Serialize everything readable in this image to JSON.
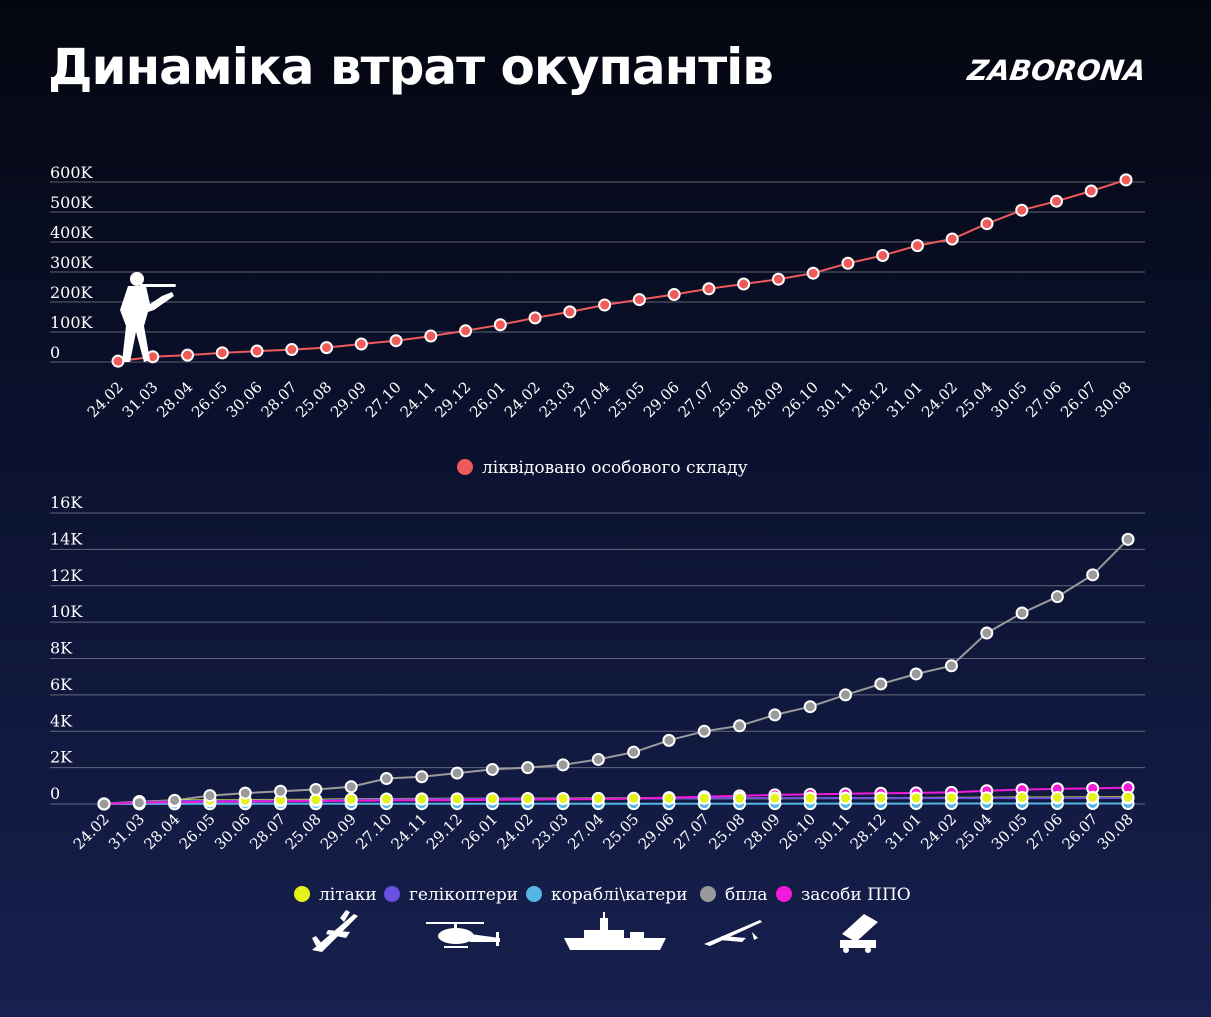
{
  "header": {
    "title": "Динаміка втрат окупантів",
    "brand": "ZABORONA"
  },
  "colors": {
    "personnel": "#f05a5a",
    "aircraft": "#e4f21a",
    "helicopters": "#6a4fe0",
    "ships": "#55b6e6",
    "drones": "#9a9a9a",
    "air_defense": "#f21ad8"
  },
  "chart_data": [
    {
      "type": "line",
      "categories": [
        "24.02",
        "31.03",
        "28.04",
        "26.05",
        "30.06",
        "28.07",
        "25.08",
        "29.09",
        "27.10",
        "24.11",
        "29.12",
        "26.01",
        "24.02",
        "23.03",
        "27.04",
        "25.05",
        "29.06",
        "27.07",
        "25.08",
        "28.09",
        "26.10",
        "30.11",
        "28.12",
        "31.01",
        "24.02",
        "25.04",
        "30.05",
        "27.06",
        "26.07",
        "30.08"
      ],
      "y_ticks": [
        "0",
        "100K",
        "200K",
        "300K",
        "400K",
        "500K",
        "600K"
      ],
      "ylim": [
        0,
        600000
      ],
      "series": [
        {
          "name": "ліквідовано особового складу",
          "color_key": "personnel",
          "values": [
            2800,
            17500,
            23000,
            30500,
            36500,
            41500,
            48000,
            60000,
            71000,
            86500,
            104000,
            124000,
            147000,
            167000,
            190000,
            208000,
            225000,
            244000,
            260000,
            276000,
            296000,
            329000,
            355000,
            388000,
            410000,
            461000,
            506000,
            536000,
            570000,
            607000
          ]
        }
      ]
    },
    {
      "type": "line",
      "categories": [
        "24.02",
        "31.03",
        "28.04",
        "26.05",
        "30.06",
        "28.07",
        "25.08",
        "29.09",
        "27.10",
        "24.11",
        "29.12",
        "26.01",
        "24.02",
        "23.03",
        "27.04",
        "25.05",
        "29.06",
        "27.07",
        "25.08",
        "28.09",
        "26.10",
        "30.11",
        "28.12",
        "31.01",
        "24.02",
        "25.04",
        "30.05",
        "27.06",
        "26.07",
        "30.08"
      ],
      "y_ticks": [
        "0",
        "2K",
        "4K",
        "6K",
        "8K",
        "10K",
        "12K",
        "14K",
        "16K"
      ],
      "ylim": [
        0,
        16000
      ],
      "series": [
        {
          "name": "бпла",
          "color_key": "drones",
          "values": [
            0,
            70,
            200,
            460,
            600,
            700,
            800,
            950,
            1400,
            1500,
            1700,
            1900,
            2000,
            2150,
            2450,
            2850,
            3500,
            4000,
            4300,
            4900,
            5350,
            6000,
            6600,
            7150,
            7600,
            9400,
            10500,
            11400,
            12600,
            14550
          ]
        },
        {
          "name": "літаки",
          "color_key": "aircraft",
          "values": [
            10,
            140,
            190,
            205,
            215,
            225,
            235,
            260,
            275,
            280,
            285,
            290,
            300,
            305,
            308,
            313,
            315,
            315,
            315,
            320,
            325,
            325,
            327,
            330,
            340,
            345,
            355,
            360,
            365,
            367
          ]
        },
        {
          "name": "гелікоптери",
          "color_key": "helicopters",
          "values": [
            8,
            130,
            160,
            170,
            185,
            190,
            195,
            240,
            260,
            265,
            275,
            285,
            287,
            290,
            293,
            300,
            310,
            315,
            320,
            324,
            324,
            325,
            326,
            326,
            326,
            326,
            326,
            326,
            328,
            328
          ]
        },
        {
          "name": "кораблі\\катери",
          "color_key": "ships",
          "values": [
            0,
            7,
            8,
            12,
            14,
            15,
            15,
            15,
            16,
            16,
            16,
            18,
            18,
            18,
            18,
            18,
            18,
            18,
            18,
            18,
            20,
            22,
            23,
            24,
            25,
            26,
            28,
            28,
            28,
            28
          ]
        },
        {
          "name": "засоби ППО",
          "color_key": "air_defense",
          "values": [
            0,
            70,
            100,
            120,
            140,
            150,
            160,
            180,
            200,
            205,
            215,
            225,
            240,
            260,
            270,
            300,
            350,
            400,
            450,
            500,
            530,
            560,
            590,
            610,
            640,
            730,
            790,
            830,
            860,
            900
          ]
        }
      ]
    }
  ],
  "legend_top": [
    {
      "label": "ліквідовано особового складу",
      "color_key": "personnel"
    }
  ],
  "legend_bottom": [
    {
      "label": "літаки",
      "color_key": "aircraft"
    },
    {
      "label": "гелікоптери",
      "color_key": "helicopters"
    },
    {
      "label": "кораблі\\катери",
      "color_key": "ships"
    },
    {
      "label": "бпла",
      "color_key": "drones"
    },
    {
      "label": "засоби ППО",
      "color_key": "air_defense"
    }
  ],
  "icons": [
    "soldier-icon",
    "airplane-icon",
    "helicopter-icon",
    "warship-icon",
    "drone-icon",
    "air-defense-launcher-icon"
  ]
}
